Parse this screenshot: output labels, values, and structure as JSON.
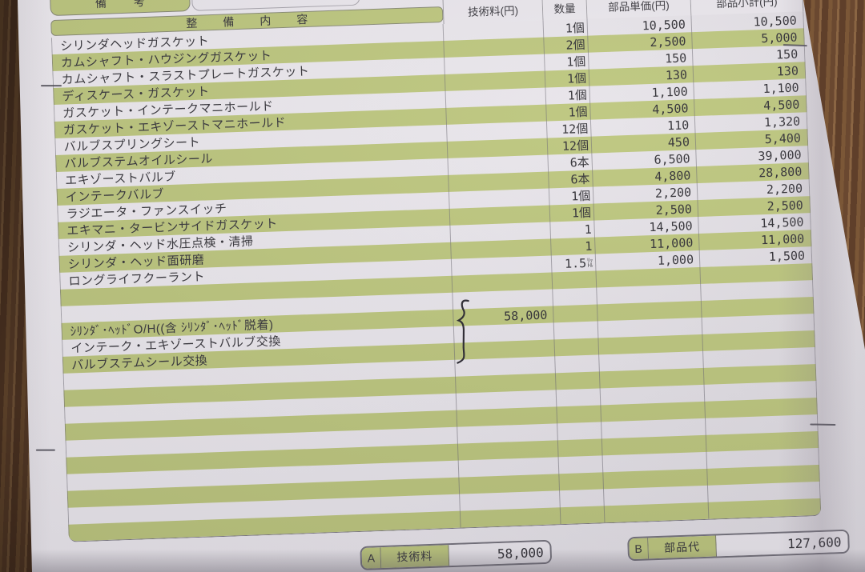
{
  "table": {
    "headers": {
      "remarks": "備　考",
      "content": "整　備　内　容",
      "labor": "技術料(円)",
      "qty": "数量",
      "unit_price": "部品単価(円)",
      "subtotal": "部品小計(円)"
    },
    "parts_rows": [
      {
        "name": "シリンダヘッドガスケット",
        "qty": "1個",
        "unit_price": "10,500",
        "subtotal": "10,500"
      },
      {
        "name": "カムシャフト・ハウジングガスケット",
        "qty": "2個",
        "unit_price": "2,500",
        "subtotal": "5,000"
      },
      {
        "name": "カムシャフト・スラストプレートガスケット",
        "qty": "1個",
        "unit_price": "150",
        "subtotal": "150"
      },
      {
        "name": "ディスケース・ガスケット",
        "qty": "1個",
        "unit_price": "130",
        "subtotal": "130"
      },
      {
        "name": "ガスケット・インテークマニホールド",
        "qty": "1個",
        "unit_price": "1,100",
        "subtotal": "1,100"
      },
      {
        "name": "ガスケット・エキゾーストマニホールド",
        "qty": "1個",
        "unit_price": "4,500",
        "subtotal": "4,500"
      },
      {
        "name": "バルブスプリングシート",
        "qty": "12個",
        "unit_price": "110",
        "subtotal": "1,320"
      },
      {
        "name": "バルブステムオイルシール",
        "qty": "12個",
        "unit_price": "450",
        "subtotal": "5,400"
      },
      {
        "name": "エキゾーストバルブ",
        "qty": "6本",
        "unit_price": "6,500",
        "subtotal": "39,000"
      },
      {
        "name": "インテークバルブ",
        "qty": "6本",
        "unit_price": "4,800",
        "subtotal": "28,800"
      },
      {
        "name": "ラジエータ・ファンスイッチ",
        "qty": "1個",
        "unit_price": "2,200",
        "subtotal": "2,200"
      },
      {
        "name": "エキマニ・タービンサイドガスケット",
        "qty": "1個",
        "unit_price": "2,500",
        "subtotal": "2,500"
      },
      {
        "name": "シリンダ・ヘッド水圧点検・清掃",
        "qty": "1",
        "unit_price": "14,500",
        "subtotal": "14,500"
      },
      {
        "name": "シリンダ・ヘッド面研磨",
        "qty": "1",
        "unit_price": "11,000",
        "subtotal": "11,000"
      },
      {
        "name": "ロングライフクーラント",
        "qty": "1.5",
        "qty_unit": "ﾘｯﾄﾙ",
        "unit_price": "1,000",
        "subtotal": "1,500"
      }
    ],
    "labor_rows": [
      {
        "name": "ｼﾘﾝﾀﾞ･ﾍｯﾄﾞO/H((含 ｼﾘﾝﾀﾞ･ﾍｯﾄﾞ脱着)",
        "labor": "58,000"
      },
      {
        "name": "インテーク・エキゾーストバルブ交換"
      },
      {
        "name": "バルブステムシール交換"
      }
    ]
  },
  "summary": {
    "a": {
      "key": "A",
      "label": "技術料",
      "value": "58,000"
    },
    "b": {
      "key": "B",
      "label": "部品代",
      "value": "127,600"
    }
  },
  "colors": {
    "stripe_green": "#bcc67d",
    "paper": "#e8e5eb",
    "wood_brown": "#6d4b33",
    "ink": "#35343a"
  }
}
